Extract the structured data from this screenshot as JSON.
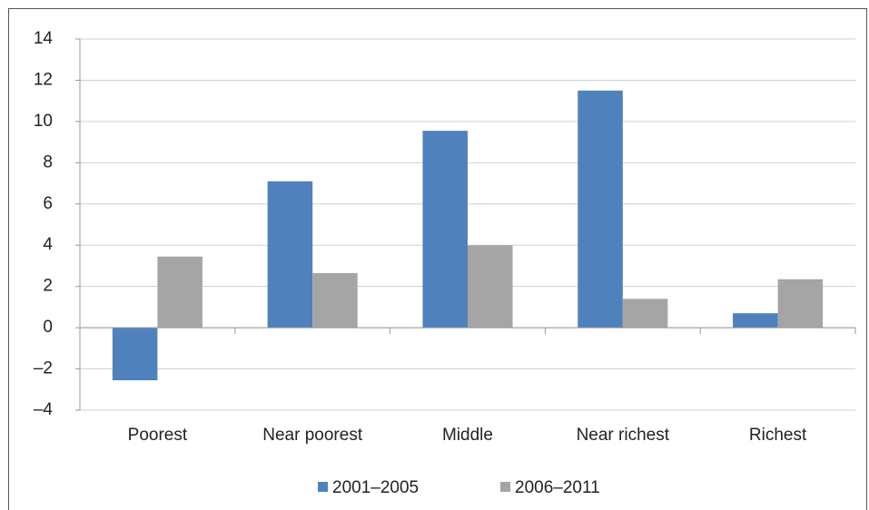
{
  "chart_data": {
    "type": "bar",
    "categories": [
      "Poorest",
      "Near poorest",
      "Middle",
      "Near richest",
      "Richest"
    ],
    "series": [
      {
        "name": "2001–2005",
        "color": "#4f81bd",
        "values": [
          -2.55,
          7.1,
          9.55,
          11.5,
          0.7
        ]
      },
      {
        "name": "2006–2011",
        "color": "#a5a5a5",
        "values": [
          3.45,
          2.65,
          4.0,
          1.4,
          2.35
        ]
      }
    ],
    "ylim": [
      -4,
      14
    ],
    "yticks": [
      {
        "value": -4,
        "label": "–4"
      },
      {
        "value": -2,
        "label": "–2"
      },
      0,
      2,
      4,
      6,
      8,
      10,
      12,
      14
    ],
    "grid": true,
    "legend": "bottom"
  }
}
